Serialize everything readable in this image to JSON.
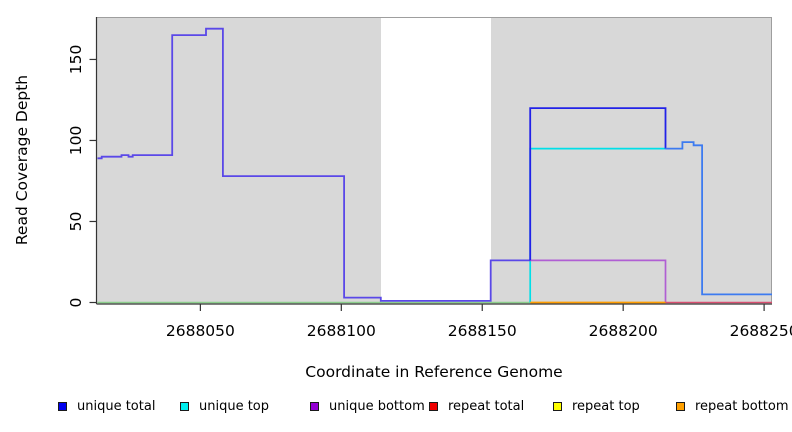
{
  "figure": {
    "x_axis_title": "Coordinate in Reference Genome",
    "y_axis_title": "Read Coverage Depth"
  },
  "legend": {
    "items": [
      {
        "label": "unique total",
        "color": "#0000ee"
      },
      {
        "label": "unique top",
        "color": "#00eeee"
      },
      {
        "label": "unique bottom",
        "color": "#9400d3"
      },
      {
        "label": "repeat total",
        "color": "#ee0000"
      },
      {
        "label": "repeat top",
        "color": "#ffff00"
      },
      {
        "label": "repeat bottom",
        "color": "#ffa000"
      }
    ]
  },
  "chart_data": {
    "type": "line",
    "step": true,
    "title": "",
    "xlabel": "Coordinate in Reference Genome",
    "ylabel": "Read Coverage Depth",
    "x_domain": [
      2688013.5,
      2688252.8
    ],
    "y_domain": [
      0,
      176.2
    ],
    "x_ticks": [
      2688050,
      2688100,
      2688150,
      2688200,
      2688250
    ],
    "y_ticks": [
      0,
      50,
      100,
      150
    ],
    "grid": false,
    "panel_background": "#d8d8d8",
    "masked_region": {
      "x_start": 2688114,
      "x_end": 2688153
    },
    "lines": [
      {
        "name": "baseline-zero-overlap",
        "color": "#8ccf8c",
        "width": 1.5,
        "points": [
          [
            2688013.5,
            0
          ],
          [
            2688167,
            0
          ]
        ]
      },
      {
        "name": "unique-top",
        "color": "#00dfe8",
        "width": 1.7,
        "points": [
          [
            2688167,
            0
          ],
          [
            2688167,
            95
          ],
          [
            2688215,
            95
          ]
        ]
      },
      {
        "name": "unique-bottom",
        "color": "#b05fd3",
        "width": 1.7,
        "points": [
          [
            2688167,
            26
          ],
          [
            2688215,
            26
          ],
          [
            2688215,
            0
          ]
        ]
      },
      {
        "name": "repeat-bottom",
        "color": "#ff9d00",
        "width": 1.8,
        "points": [
          [
            2688167,
            0
          ],
          [
            2688215,
            0
          ]
        ]
      },
      {
        "name": "repeat-total",
        "color": "#d94f70",
        "width": 1.6,
        "points": [
          [
            2688215,
            0
          ],
          [
            2688252.8,
            0
          ]
        ]
      },
      {
        "name": "unique-total-left",
        "color": "#5a48e8",
        "width": 1.8,
        "points": [
          [
            2688013.5,
            89
          ],
          [
            2688015,
            89
          ],
          [
            2688015,
            90
          ],
          [
            2688022,
            90
          ],
          [
            2688022,
            91
          ],
          [
            2688024.5,
            91
          ],
          [
            2688024.5,
            90
          ],
          [
            2688026,
            90
          ],
          [
            2688026,
            91
          ],
          [
            2688040,
            91
          ],
          [
            2688040,
            165
          ],
          [
            2688052,
            165
          ],
          [
            2688052,
            169
          ],
          [
            2688058,
            169
          ],
          [
            2688058,
            78
          ],
          [
            2688101,
            78
          ],
          [
            2688101,
            3
          ],
          [
            2688114,
            3
          ],
          [
            2688114,
            1
          ],
          [
            2688153,
            1
          ],
          [
            2688153,
            26
          ],
          [
            2688167,
            26
          ]
        ]
      },
      {
        "name": "unique-total-mid",
        "color": "#2222e8",
        "width": 1.8,
        "points": [
          [
            2688167,
            26
          ],
          [
            2688167,
            120
          ],
          [
            2688215,
            120
          ],
          [
            2688215,
            95
          ]
        ]
      },
      {
        "name": "unique-total-right",
        "color": "#3d7bf0",
        "width": 1.8,
        "points": [
          [
            2688215,
            95
          ],
          [
            2688221,
            95
          ],
          [
            2688221,
            99
          ],
          [
            2688225,
            99
          ],
          [
            2688225,
            97
          ],
          [
            2688228,
            97
          ],
          [
            2688228,
            5
          ],
          [
            2688252.8,
            5
          ]
        ]
      }
    ]
  }
}
